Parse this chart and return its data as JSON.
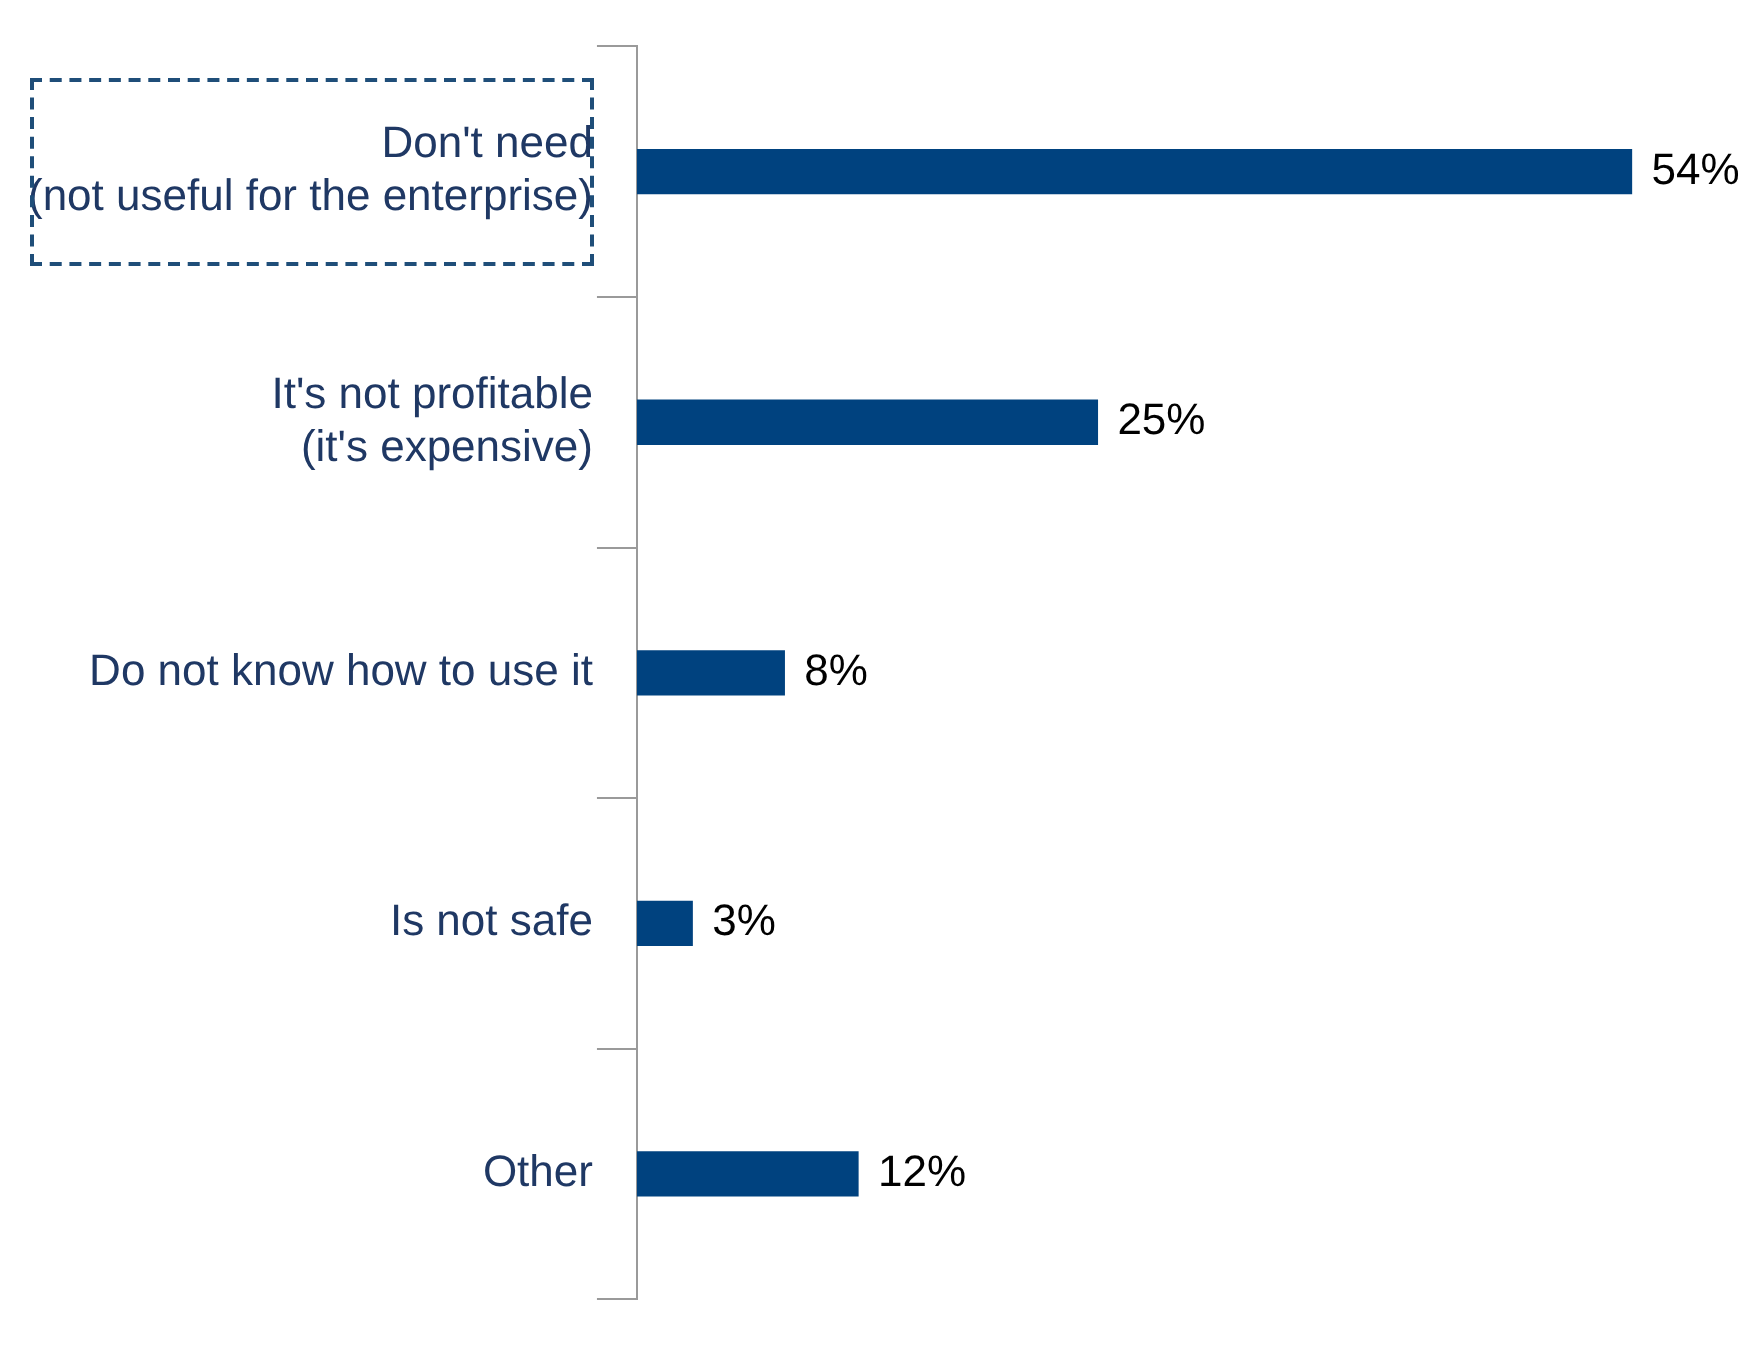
{
  "chart_data": {
    "type": "bar",
    "orientation": "horizontal",
    "categories": [
      "Don't need\n(not useful for the enterprise)",
      "It's not profitable\n(it's expensive)",
      "Do not know how to use it",
      "Is not safe",
      "Other"
    ],
    "values": [
      54,
      25,
      8,
      3,
      12
    ],
    "value_labels": [
      "54%",
      "25%",
      "8%",
      "3%",
      "12%"
    ],
    "color": "#00427f",
    "legend": false
  }
}
